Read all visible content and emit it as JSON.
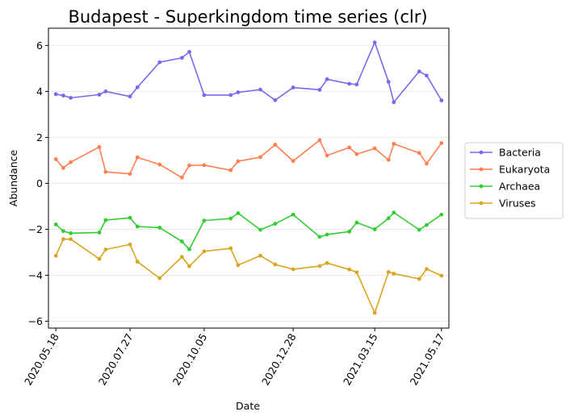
{
  "chart_data": {
    "type": "line",
    "title": "Budapest - Superkingdom time series (clr)",
    "xlabel": "Date",
    "ylabel": "Abundance",
    "xlim": [
      "2020-05-11",
      "2021-05-24"
    ],
    "ylim": [
      -6.3,
      6.75
    ],
    "x_ticks": [
      "2020.05.18",
      "2020.07.27",
      "2020.10.05",
      "2020.12.28",
      "2021.03.15",
      "2021.05.17"
    ],
    "y_ticks": [
      -6,
      -4,
      -2,
      0,
      2,
      4,
      6
    ],
    "grid": "horizontal",
    "legend_placement": "outside right",
    "dates": [
      "2020-05-18",
      "2020-05-25",
      "2020-06-01",
      "2020-06-28",
      "2020-07-04",
      "2020-07-27",
      "2020-08-03",
      "2020-08-24",
      "2020-09-14",
      "2020-09-21",
      "2020-10-05",
      "2020-10-30",
      "2020-11-06",
      "2020-11-27",
      "2020-12-11",
      "2020-12-28",
      "2021-01-22",
      "2021-01-29",
      "2021-02-19",
      "2021-02-26",
      "2021-03-15",
      "2021-03-28",
      "2021-04-02",
      "2021-04-26",
      "2021-05-03",
      "2021-05-17"
    ],
    "series": [
      {
        "name": "Bacteria",
        "color": "#7b68ee",
        "values": [
          3.88,
          3.82,
          3.72,
          3.86,
          4.0,
          3.78,
          4.18,
          5.27,
          5.46,
          5.72,
          3.84,
          3.84,
          3.96,
          4.08,
          3.62,
          4.17,
          4.07,
          4.53,
          4.33,
          4.3,
          6.13,
          4.42,
          3.53,
          4.87,
          4.69,
          3.61
        ]
      },
      {
        "name": "Eukaryota",
        "color": "#ff7f50",
        "values": [
          1.05,
          0.67,
          0.92,
          1.58,
          0.5,
          0.41,
          1.13,
          0.82,
          0.25,
          0.78,
          0.79,
          0.57,
          0.96,
          1.14,
          1.68,
          0.97,
          1.88,
          1.21,
          1.56,
          1.27,
          1.52,
          1.02,
          1.72,
          1.32,
          0.86,
          1.75
        ]
      },
      {
        "name": "Archaea",
        "color": "#32cd32",
        "values": [
          -1.79,
          -2.08,
          -2.17,
          -2.14,
          -1.6,
          -1.5,
          -1.88,
          -1.93,
          -2.53,
          -2.87,
          -1.62,
          -1.53,
          -1.3,
          -2.02,
          -1.76,
          -1.36,
          -2.33,
          -2.23,
          -2.1,
          -1.71,
          -2.0,
          -1.52,
          -1.27,
          -2.02,
          -1.81,
          -1.36
        ]
      },
      {
        "name": "Viruses",
        "color": "#daa520",
        "values": [
          -3.15,
          -2.43,
          -2.43,
          -3.29,
          -2.88,
          -2.66,
          -3.41,
          -4.13,
          -3.2,
          -3.61,
          -2.96,
          -2.83,
          -3.56,
          -3.15,
          -3.53,
          -3.74,
          -3.6,
          -3.47,
          -3.75,
          -3.87,
          -5.64,
          -3.86,
          -3.93,
          -4.16,
          -3.73,
          -4.02
        ]
      }
    ]
  }
}
